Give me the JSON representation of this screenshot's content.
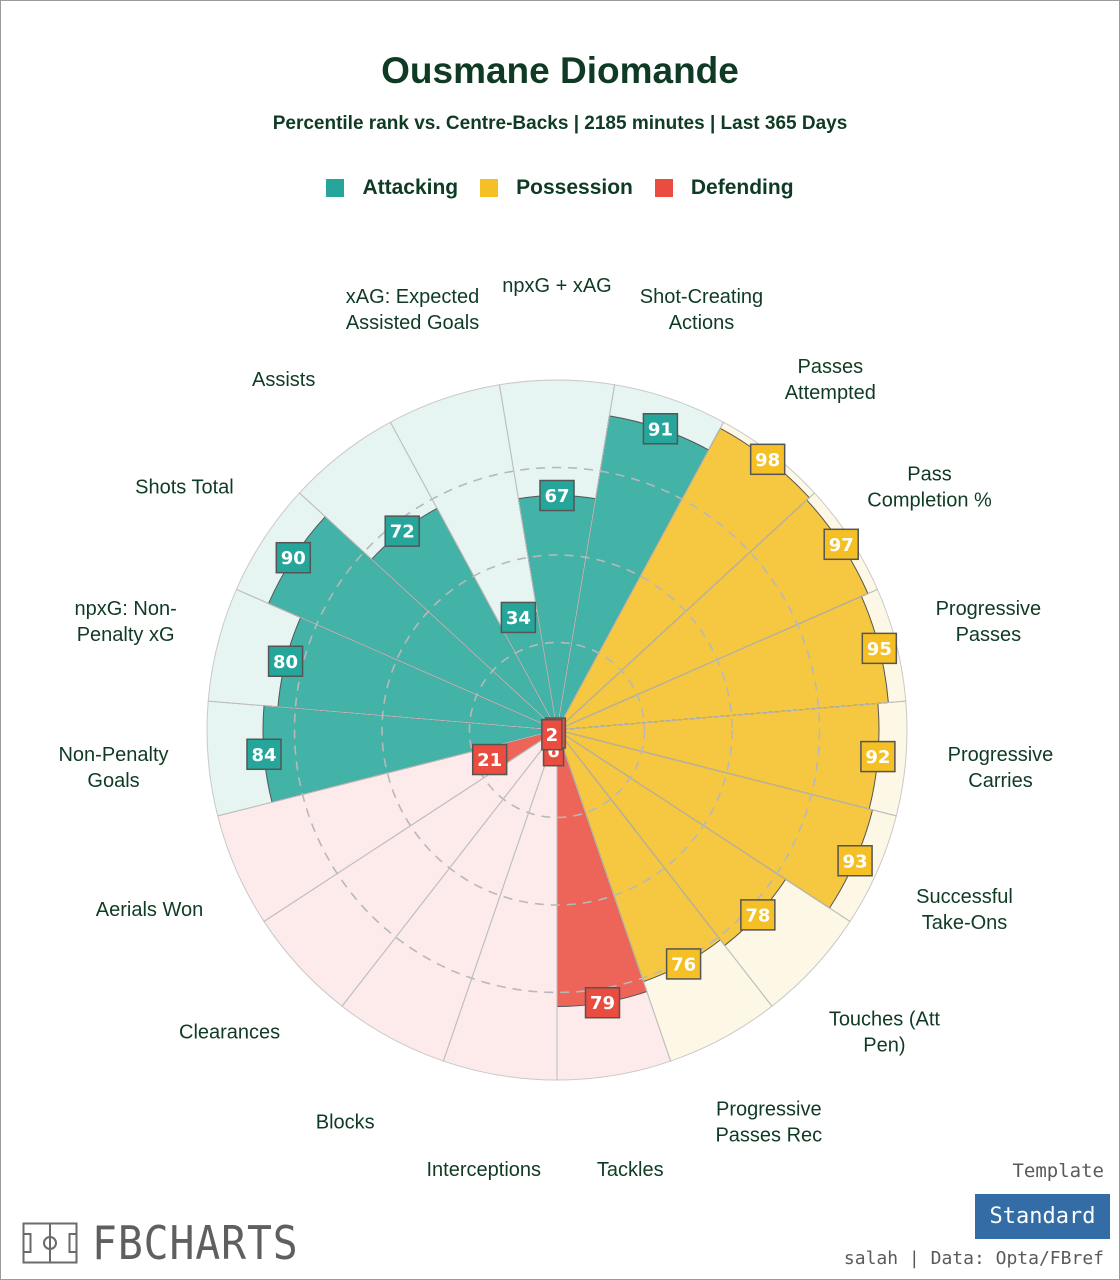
{
  "title": "Ousmane Diomande",
  "subtitle": "Percentile rank vs. Centre-Backs | 2185 minutes | Last 365 Days",
  "legend": [
    {
      "label": "Attacking",
      "color": "#26a69a"
    },
    {
      "label": "Possession",
      "color": "#f4c025"
    },
    {
      "label": "Defending",
      "color": "#ea4c3f"
    }
  ],
  "colors": {
    "attacking": "#26a69a",
    "possession": "#f4c025",
    "defending": "#ea4c3f",
    "text": "#0f3b24"
  },
  "chart_data": {
    "type": "radar",
    "value_range": [
      0,
      100
    ],
    "grid": "dashed rings at 25, 50, 75",
    "metrics": [
      {
        "label": "npxG + xAG",
        "category": "Attacking",
        "value": 67
      },
      {
        "label": "Shot-Creating Actions",
        "category": "Attacking",
        "value": 91
      },
      {
        "label": "Passes Attempted",
        "category": "Possession",
        "value": 98
      },
      {
        "label": "Pass Completion %",
        "category": "Possession",
        "value": 97
      },
      {
        "label": "Progressive Passes",
        "category": "Possession",
        "value": 95
      },
      {
        "label": "Progressive Carries",
        "category": "Possession",
        "value": 92
      },
      {
        "label": "Successful Take-Ons",
        "category": "Possession",
        "value": 93
      },
      {
        "label": "Touches (Att Pen)",
        "category": "Possession",
        "value": 78
      },
      {
        "label": "Progressive Passes Rec",
        "category": "Possession",
        "value": 76
      },
      {
        "label": "Tackles",
        "category": "Defending",
        "value": 79
      },
      {
        "label": "Interceptions",
        "category": "Defending",
        "value": 6
      },
      {
        "label": "Blocks",
        "category": "Defending",
        "value": 1
      },
      {
        "label": "Clearances",
        "category": "Defending",
        "value": 2
      },
      {
        "label": "Aerials Won",
        "category": "Defending",
        "value": 21
      },
      {
        "label": "Non-Penalty Goals",
        "category": "Attacking",
        "value": 84
      },
      {
        "label": "npxG: Non-Penalty xG",
        "category": "Attacking",
        "value": 80
      },
      {
        "label": "Shots Total",
        "category": "Attacking",
        "value": 90
      },
      {
        "label": "Assists",
        "category": "Attacking",
        "value": 72
      },
      {
        "label": "xAG: Expected Assisted Goals",
        "category": "Attacking",
        "value": 34
      }
    ]
  },
  "branding": {
    "logo_text": "FBCHARTS",
    "template_label": "Template",
    "template_button": "Standard",
    "credit": "salah | Data: Opta/FBref"
  }
}
